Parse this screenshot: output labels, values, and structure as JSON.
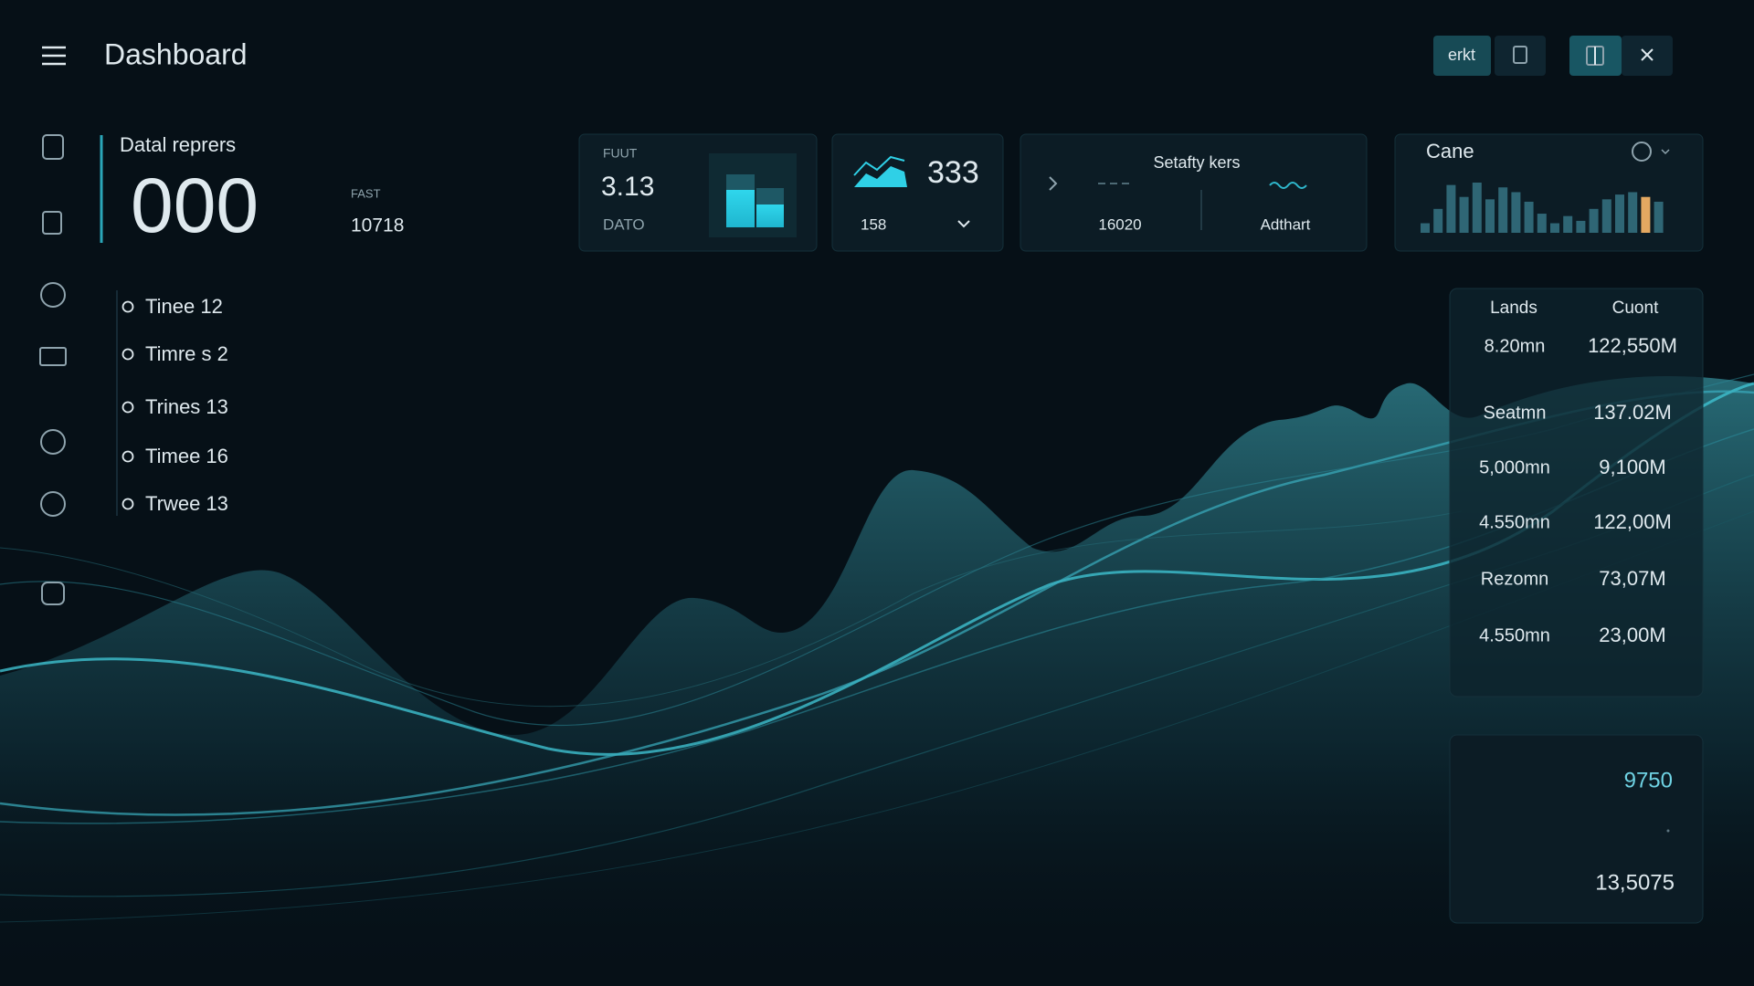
{
  "header": {
    "title": "Dashboard",
    "actions": [
      "erkt"
    ]
  },
  "summary": {
    "label": "Datal reprers",
    "value": "000",
    "side_label": "FAST",
    "side_value": "10718"
  },
  "list": [
    "Tinee 12",
    "Timre s 2",
    "Trines 13",
    "Timee 16",
    "Trwee 13"
  ],
  "cards": [
    {
      "label": "FUUT",
      "value": "3.13",
      "footer": "DATO"
    },
    {
      "value": "333",
      "footer": "158"
    },
    {
      "title": "Setafty kers",
      "left": "16020",
      "right": "Adthart"
    },
    {
      "title": "Cane",
      "values": [
        8,
        20,
        40,
        30,
        42,
        28,
        38,
        34,
        26,
        16,
        8,
        14,
        10,
        20,
        28,
        32,
        34,
        30,
        26
      ],
      "colors": [
        "#2f6675",
        "#2f6675",
        "#2f6675",
        "#2f6675",
        "#2f6675",
        "#2f6675",
        "#2f6675",
        "#2f6675",
        "#2f6675",
        "#2f6675",
        "#2f6675",
        "#2f6675",
        "#2f6675",
        "#2f6675",
        "#2f6675",
        "#2f6675",
        "#2f6675",
        "#e4a861",
        "#2f6675"
      ]
    }
  ],
  "table": {
    "columns": [
      "Lands",
      "Cuont"
    ],
    "rows": [
      [
        "8.20mn",
        "122,550M"
      ],
      [
        "Seatmn",
        "137.02M"
      ],
      [
        "5,000mn",
        "9,100M"
      ],
      [
        "4.550mn",
        "122,00M"
      ],
      [
        "Rezomn",
        "73,07M"
      ],
      [
        "4.550mn",
        "23,00M"
      ]
    ]
  },
  "totals": {
    "values": [
      "9750",
      "13,5075"
    ]
  }
}
